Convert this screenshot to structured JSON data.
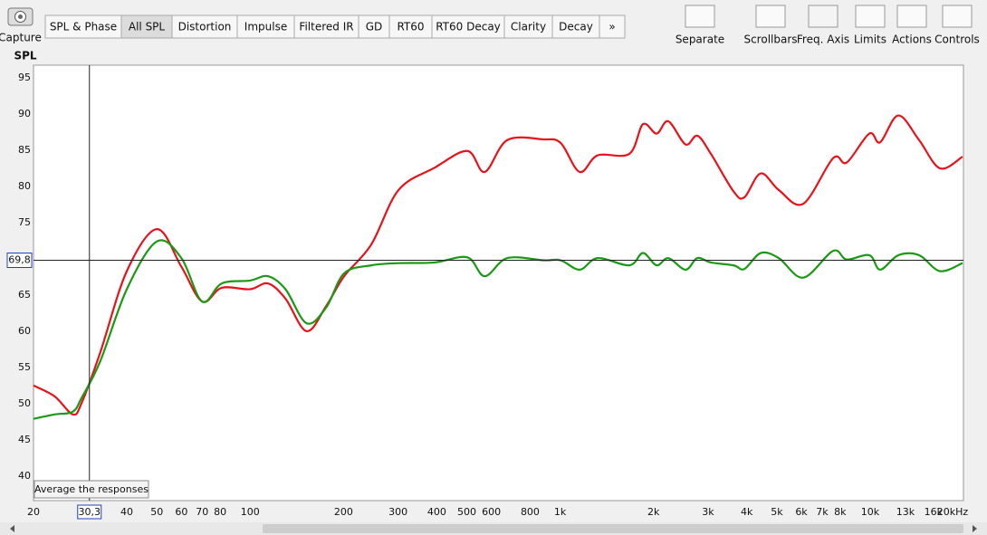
{
  "toolbar": {
    "capture": "Capture",
    "tabs": [
      "SPL & Phase",
      "All SPL",
      "Distortion",
      "Impulse",
      "Filtered IR",
      "GD",
      "RT60",
      "RT60 Decay",
      "Clarity",
      "Decay",
      "»"
    ],
    "tools": [
      "Separate",
      "Scrollbars",
      "Freq. Axis",
      "Limits",
      "Actions",
      "Controls"
    ]
  },
  "chart_data": {
    "type": "line",
    "y_label": "SPL",
    "xscale": "log",
    "grid": true,
    "xlim": [
      20,
      20000
    ],
    "ylim": [
      36.6,
      96.75
    ],
    "yticks": [
      40,
      45,
      50,
      55,
      60,
      65,
      70,
      75,
      80,
      85,
      90,
      95
    ],
    "xticks": [
      20,
      40,
      50,
      60,
      70,
      80,
      100,
      200,
      300,
      400,
      500,
      600,
      800,
      {
        "value": 1000,
        "label": "1k"
      },
      {
        "value": 2000,
        "label": "2k"
      },
      {
        "value": 3000,
        "label": "3k"
      },
      {
        "value": 4000,
        "label": "4k"
      },
      {
        "value": 5000,
        "label": "5k"
      },
      {
        "value": 6000,
        "label": "6k"
      },
      {
        "value": 7000,
        "label": "7k"
      },
      {
        "value": 8000,
        "label": "8k"
      },
      {
        "value": 10000,
        "label": "10k"
      },
      {
        "value": 13000,
        "label": "13k"
      },
      {
        "value": 16000,
        "label": "16k"
      },
      {
        "value": 20000,
        "label": "20kHz"
      }
    ],
    "cursor": {
      "x": {
        "value": 30.3,
        "label": "30,3"
      },
      "y": {
        "value": 69.8,
        "label": "69,8"
      }
    },
    "tooltip": "Average the responses",
    "x": [
      20,
      23.4,
      26.8,
      28.6,
      32.8,
      40,
      50,
      60,
      70,
      81,
      100,
      114,
      130,
      152,
      176,
      201,
      246,
      301,
      394,
      502,
      571,
      675,
      884,
      1004,
      1156,
      1322,
      1672,
      1850,
      2047,
      2234,
      2538,
      2770,
      3064,
      3626,
      3930,
      4436,
      5074,
      6084,
      7596,
      8402,
      9938,
      10774,
      12328,
      14388,
      16790,
      19860
    ],
    "series": [
      {
        "color": "#e8121b",
        "values": [
          52.5,
          51,
          48.5,
          50.1,
          57,
          68.3,
          74.1,
          68.9,
          64.1,
          66,
          65.8,
          66.6,
          64.5,
          60,
          63.5,
          67.6,
          72,
          79.5,
          82.6,
          84.9,
          82,
          86.4,
          86.5,
          86,
          82,
          84.3,
          84.5,
          88.6,
          87.3,
          89,
          85.8,
          87,
          84.5,
          79.3,
          78.5,
          81.8,
          79.5,
          77.6,
          83.9,
          83.3,
          87.3,
          86.1,
          89.8,
          86.4,
          82.5,
          84.1
        ]
      },
      {
        "color": "#1a9a14",
        "values": [
          47.9,
          48.5,
          48.9,
          50.8,
          55.8,
          65.8,
          72.4,
          70.1,
          64.1,
          66.6,
          67,
          67.6,
          65.8,
          61.1,
          63.3,
          68,
          69.1,
          69.4,
          69.5,
          70.2,
          67.6,
          70.1,
          69.8,
          69.8,
          68.5,
          70.1,
          69.1,
          70.8,
          69.1,
          70.1,
          68.5,
          70.1,
          69.5,
          69.1,
          68.6,
          70.8,
          70.1,
          67.4,
          71.1,
          69.9,
          70.5,
          68.5,
          70.5,
          70.5,
          68.3,
          69.4
        ]
      }
    ]
  }
}
